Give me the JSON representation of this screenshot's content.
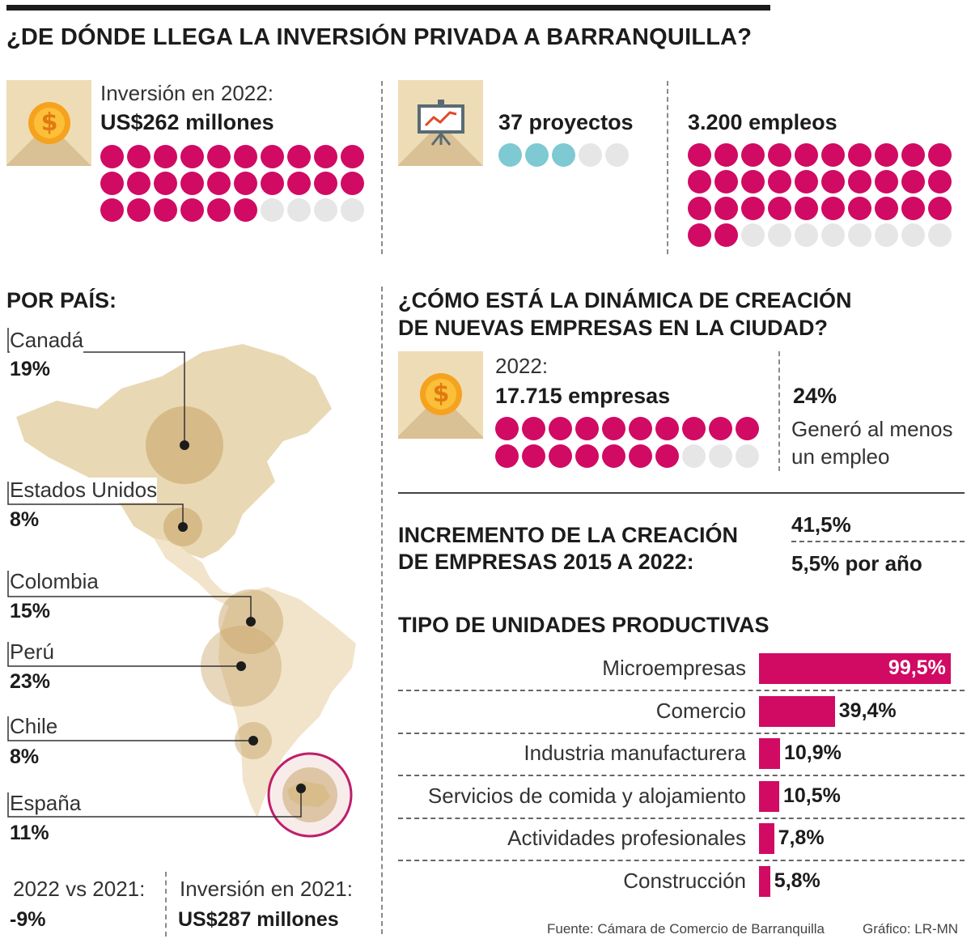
{
  "title": "¿DE DÓNDE LLEGA LA INVERSIÓN PRIVADA A BARRANQUILLA?",
  "colors": {
    "accent": "#d10a64",
    "teal": "#7ec9d2",
    "empty_dot": "#e6e6e6",
    "map_land": "#e9d8b4",
    "tan_box": "#eedcb6"
  },
  "investment": {
    "icon": "dollar-coin-icon",
    "label": "Inversión en 2022:",
    "value": "US$262 millones",
    "dots_filled": 26,
    "dots_total": 30
  },
  "projects": {
    "icon": "presentation-chart-icon",
    "value": "37 proyectos",
    "dots_filled": 3,
    "dots_total": 5
  },
  "jobs": {
    "value": "3.200 empleos",
    "dots_filled": 32,
    "dots_total": 40
  },
  "by_country": {
    "heading": "POR PAÍS:",
    "countries": [
      {
        "name": "Canadá",
        "pct": "19%"
      },
      {
        "name": "Estados Unidos",
        "pct": "8%"
      },
      {
        "name": "Colombia",
        "pct": "15%"
      },
      {
        "name": "Perú",
        "pct": "23%"
      },
      {
        "name": "Chile",
        "pct": "8%"
      },
      {
        "name": "España",
        "pct": "11%"
      }
    ]
  },
  "comparison": {
    "label": "2022 vs 2021:",
    "value": "-9%",
    "inv2021_label": "Inversión en 2021:",
    "inv2021_value": "US$287 millones"
  },
  "dynamics": {
    "heading_line1": "¿CÓMO ESTÁ LA DINÁMICA DE CREACIÓN",
    "heading_line2": "DE NUEVAS EMPRESAS EN LA CIUDAD?",
    "icon": "dollar-coin-icon",
    "year_label": "2022:",
    "companies": "17.715 empresas",
    "dots_filled": 17,
    "dots_total": 20,
    "pct": "24%",
    "pct_desc_line1": "Generó al menos",
    "pct_desc_line2": "un empleo"
  },
  "increase": {
    "heading_line1": "INCREMENTO DE LA CREACIÓN",
    "heading_line2": "DE EMPRESAS 2015 A 2022:",
    "total": "41,5%",
    "per_year": "5,5% por año"
  },
  "chart_data": {
    "type": "bar",
    "title": "TIPO DE UNIDADES PRODUCTIVAS",
    "categories": [
      "Microempresas",
      "Comercio",
      "Industria manufacturera",
      "Servicios de comida y alojamiento",
      "Actividades profesionales",
      "Construcción"
    ],
    "values": [
      99.5,
      39.4,
      10.9,
      10.5,
      7.8,
      5.8
    ],
    "value_labels": [
      "99,5%",
      "39,4%",
      "10,9%",
      "10,5%",
      "7,8%",
      "5,8%"
    ],
    "orientation": "horizontal",
    "xlim": [
      0,
      100
    ]
  },
  "source": "Fuente: Cámara de Comercio de Barranquilla",
  "credit": "Gráfico: LR-MN"
}
